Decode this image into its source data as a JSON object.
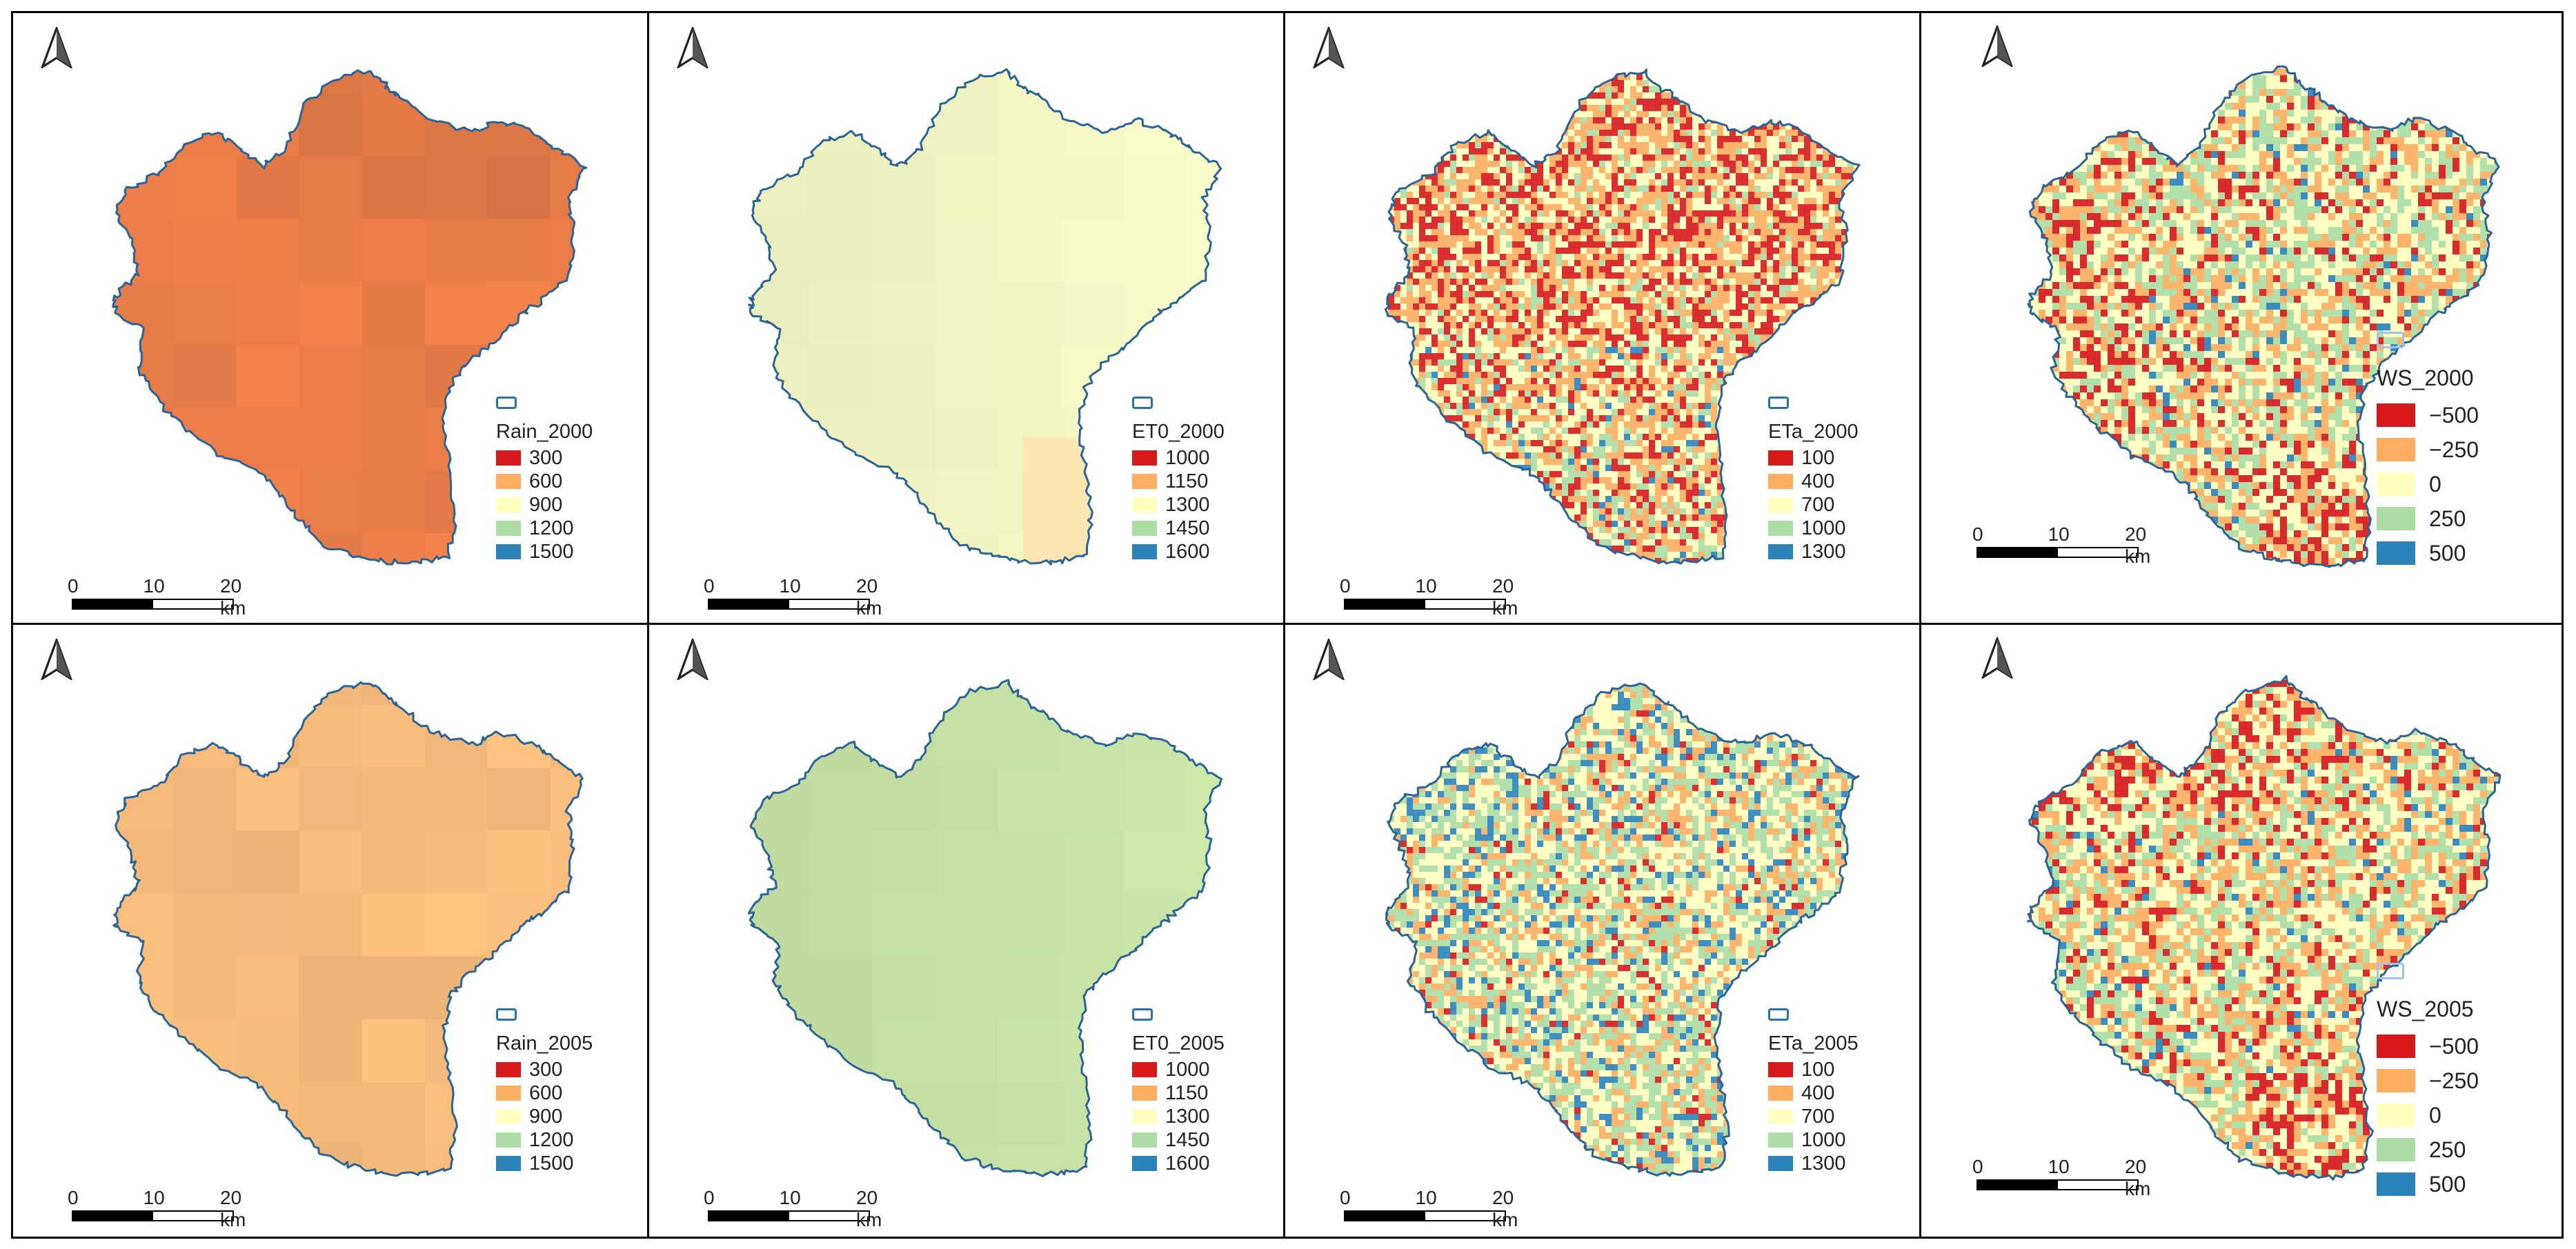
{
  "scale_labels": [
    "0",
    "10",
    "20 km"
  ],
  "colors": {
    "class_palette": [
      "#d7191c",
      "#fdae61",
      "#ffffbf",
      "#abdda4",
      "#2b83ba"
    ],
    "rain_2000_fill": "#ec7e49",
    "rain_2005_fill": "#f8bd7c",
    "et0_2000_fill": "#f4f7c4",
    "et0_2005_fill": "#c8e3a6",
    "basin_outline": "#2a6396"
  },
  "panels": [
    {
      "id": "rain_2000",
      "legend_title": "Rain_2000",
      "classes": [
        "300",
        "600",
        "900",
        "1200",
        "1500"
      ],
      "style": "smooth"
    },
    {
      "id": "et0_2000",
      "legend_title": "ET0_2000",
      "classes": [
        "1000",
        "1150",
        "1300",
        "1450",
        "1600"
      ],
      "style": "smooth"
    },
    {
      "id": "eta_2000",
      "legend_title": "ETa_2000",
      "classes": [
        "100",
        "400",
        "700",
        "1000",
        "1300"
      ],
      "style": "noise"
    },
    {
      "id": "ws_2000",
      "legend_title": "WS_2000",
      "classes": [
        "−500",
        "−250",
        "0",
        "250",
        "500"
      ],
      "style": "noise"
    },
    {
      "id": "rain_2005",
      "legend_title": "Rain_2005",
      "classes": [
        "300",
        "600",
        "900",
        "1200",
        "1500"
      ],
      "style": "smooth"
    },
    {
      "id": "et0_2005",
      "legend_title": "ET0_2005",
      "classes": [
        "1000",
        "1150",
        "1300",
        "1450",
        "1600"
      ],
      "style": "smooth"
    },
    {
      "id": "eta_2005",
      "legend_title": "ETa_2005",
      "classes": [
        "100",
        "400",
        "700",
        "1000",
        "1300"
      ],
      "style": "noise"
    },
    {
      "id": "ws_2005",
      "legend_title": "WS_2005",
      "classes": [
        "−500",
        "−250",
        "0",
        "250",
        "500"
      ],
      "style": "noise"
    }
  ]
}
